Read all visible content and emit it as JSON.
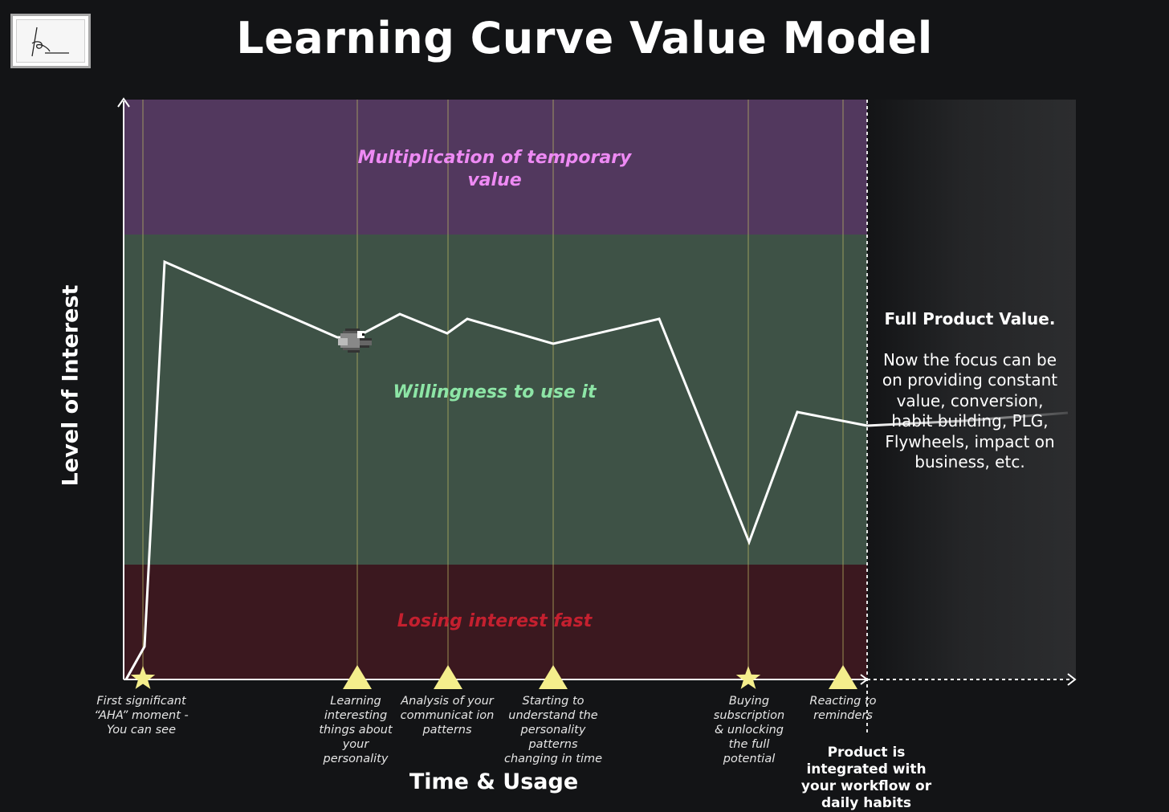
{
  "title": "Learning Curve Value Model",
  "axes": {
    "y_label": "Level of Interest",
    "x_label": "Time & Usage"
  },
  "zones": {
    "top_label": "Multiplication of temporary value",
    "middle_label": "Willingness to use it",
    "bottom_label": "Losing interest fast"
  },
  "milestones": [
    {
      "marker": "star",
      "text": "First significant “AHA” moment - You can see"
    },
    {
      "marker": "triangle",
      "text": "Learning interesting things about your personality"
    },
    {
      "marker": "triangle",
      "text": "Analysis of your communicat ion patterns"
    },
    {
      "marker": "triangle",
      "text": "Starting to understand the personality patterns changing in time"
    },
    {
      "marker": "star",
      "text": "Buying subscription & unlocking the full potential"
    },
    {
      "marker": "triangle",
      "text": "Reacting to reminders"
    }
  ],
  "side_panel": {
    "heading": "Full Product Value.",
    "body": "Now the focus can be on providing constant value, conversion, habit building, PLG, Flywheels, impact on business, etc."
  },
  "integrated_note": "Product is integrated with your workflow or daily habits",
  "colors": {
    "background": "#131416",
    "zone_top": "#52385e",
    "zone_middle": "#3e5246",
    "zone_bottom": "#3b181f",
    "zone_top_text": "#ee8af4",
    "zone_middle_text": "#8de5a6",
    "zone_bottom_text": "#c4202f",
    "marker": "#f4ee8c",
    "curve": "#ffffff"
  },
  "icons": {
    "logo": "signature-logo",
    "mascot": "pixel-bird-icon"
  }
}
